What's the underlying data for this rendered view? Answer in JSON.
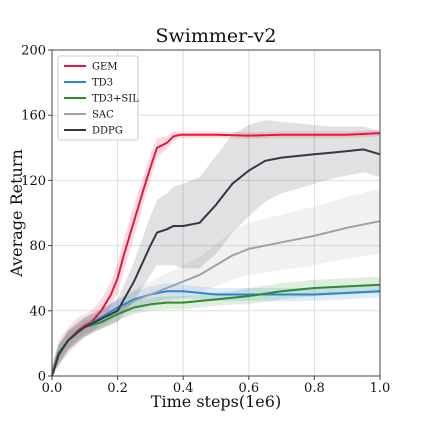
{
  "chart_data": {
    "type": "line",
    "title": "Swimmer-v2",
    "xlabel": "Time steps(1e6)",
    "ylabel": "Average Return",
    "xlim": [
      0,
      1.0
    ],
    "ylim": [
      0,
      200
    ],
    "xticks": [
      0.0,
      0.2,
      0.4,
      0.6,
      0.8,
      1.0
    ],
    "xtick_labels": [
      "0.0",
      "0.2",
      "0.4",
      "0.6",
      "0.8",
      "1.0"
    ],
    "yticks": [
      0,
      40,
      80,
      120,
      160,
      200
    ],
    "ytick_labels": [
      "0",
      "40",
      "80",
      "120",
      "160",
      "200"
    ],
    "grid": true,
    "legend_position": "top-left",
    "series": [
      {
        "name": "GEM",
        "color": "#e8173f",
        "x": [
          0,
          0.02,
          0.05,
          0.08,
          0.1,
          0.12,
          0.15,
          0.18,
          0.2,
          0.22,
          0.25,
          0.28,
          0.3,
          0.32,
          0.35,
          0.37,
          0.39,
          0.42,
          0.5,
          0.6,
          0.7,
          0.8,
          0.9,
          1.0
        ],
        "y": [
          0,
          14,
          22,
          28,
          31,
          33,
          40,
          50,
          60,
          75,
          95,
          115,
          128,
          140,
          143,
          147,
          148,
          148,
          148,
          147.5,
          148,
          148,
          148,
          149
        ],
        "band": [
          6,
          8,
          8,
          8,
          7,
          7,
          7,
          8,
          9,
          10,
          10,
          9,
          8,
          6,
          4,
          3,
          2,
          2,
          2,
          2,
          2,
          2,
          2,
          2
        ]
      },
      {
        "name": "TD3",
        "color": "#2a86d4",
        "x": [
          0,
          0.02,
          0.05,
          0.08,
          0.1,
          0.15,
          0.2,
          0.25,
          0.3,
          0.35,
          0.4,
          0.45,
          0.5,
          0.55,
          0.6,
          0.7,
          0.8,
          0.9,
          1.0
        ],
        "y": [
          0,
          13,
          22,
          27,
          30,
          36,
          42,
          47,
          50,
          52,
          52,
          51,
          50,
          50,
          50,
          50,
          50,
          51,
          52
        ],
        "band": [
          5,
          6,
          6,
          5,
          5,
          5,
          5,
          5,
          5,
          5,
          4,
          4,
          4,
          4,
          4,
          4,
          4,
          4,
          4
        ]
      },
      {
        "name": "TD3+SIL",
        "color": "#2e8b2e",
        "x": [
          0,
          0.02,
          0.05,
          0.08,
          0.1,
          0.15,
          0.2,
          0.25,
          0.3,
          0.35,
          0.4,
          0.45,
          0.5,
          0.55,
          0.6,
          0.7,
          0.8,
          0.9,
          1.0
        ],
        "y": [
          0,
          14,
          22,
          27,
          30,
          33,
          38,
          42,
          44,
          45,
          45,
          46,
          47,
          48,
          49,
          52,
          54,
          55,
          56
        ],
        "band": [
          5,
          5,
          5,
          4,
          4,
          4,
          4,
          4,
          4,
          4,
          4,
          4,
          4,
          4,
          5,
          5,
          5,
          5,
          5
        ]
      },
      {
        "name": "SAC",
        "color": "#a0a0a0",
        "x": [
          0,
          0.02,
          0.05,
          0.08,
          0.1,
          0.15,
          0.2,
          0.25,
          0.3,
          0.35,
          0.4,
          0.45,
          0.5,
          0.55,
          0.6,
          0.7,
          0.8,
          0.9,
          1.0
        ],
        "y": [
          0,
          13,
          22,
          27,
          30,
          35,
          40,
          46,
          50,
          54,
          58,
          62,
          68,
          74,
          78,
          82,
          86,
          91,
          95
        ],
        "band": [
          5,
          6,
          6,
          6,
          6,
          6,
          6,
          7,
          8,
          9,
          10,
          11,
          13,
          15,
          16,
          17,
          18,
          19,
          20
        ]
      },
      {
        "name": "DDPG",
        "color": "#333840",
        "x": [
          0,
          0.02,
          0.05,
          0.08,
          0.1,
          0.15,
          0.2,
          0.25,
          0.3,
          0.32,
          0.35,
          0.37,
          0.4,
          0.45,
          0.5,
          0.55,
          0.6,
          0.65,
          0.7,
          0.8,
          0.85,
          0.9,
          0.95,
          1.0
        ],
        "y": [
          0,
          13,
          22,
          27,
          30,
          35,
          40,
          58,
          80,
          88,
          90,
          92,
          92,
          94,
          105,
          118,
          126,
          132,
          134,
          136,
          137,
          138,
          139,
          136
        ],
        "band": [
          5,
          6,
          6,
          6,
          6,
          6,
          7,
          12,
          18,
          20,
          22,
          24,
          26,
          28,
          30,
          30,
          28,
          25,
          22,
          18,
          16,
          15,
          14,
          14
        ]
      }
    ]
  }
}
